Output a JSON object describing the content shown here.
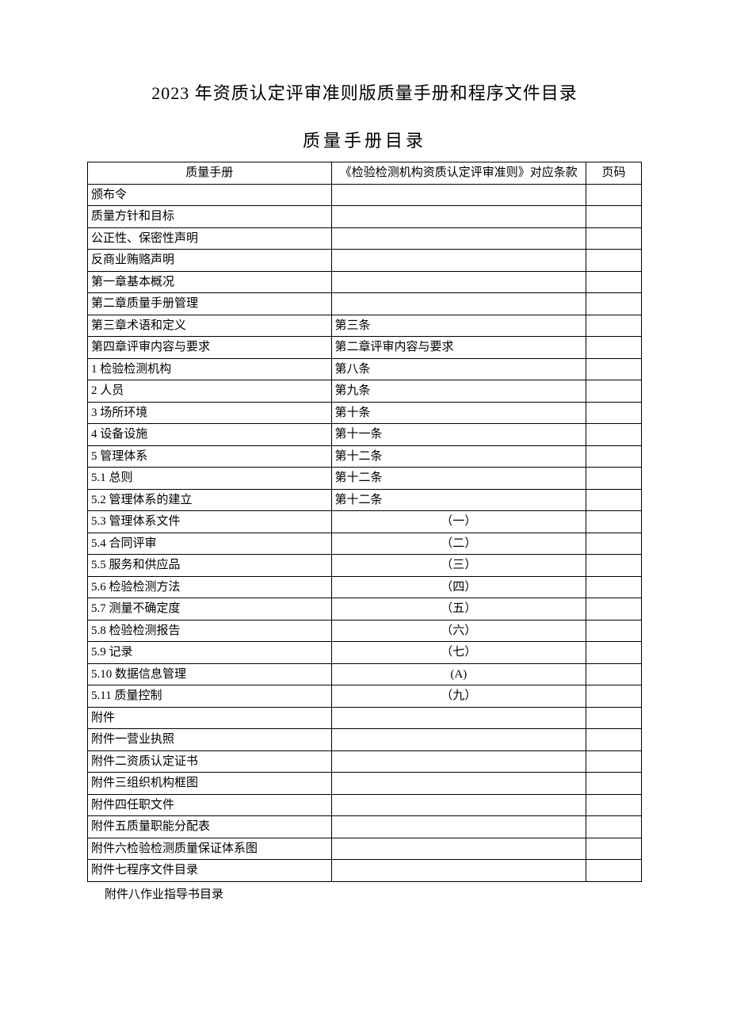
{
  "document": {
    "main_title": "2023 年资质认定评审准则版质量手册和程序文件目录",
    "sub_title": "质量手册目录",
    "footer_note": "附件八作业指导书目录"
  },
  "table": {
    "headers": {
      "col1": "质量手册",
      "col2": "《检验检测机构资质认定评审准则》对应条款",
      "col3": "页码"
    },
    "rows": [
      {
        "c1": "颁布令",
        "c2": "",
        "c3": "",
        "centered": false
      },
      {
        "c1": "质量方针和目标",
        "c2": "",
        "c3": "",
        "centered": false
      },
      {
        "c1": "公正性、保密性声明",
        "c2": "",
        "c3": "",
        "centered": false
      },
      {
        "c1": "反商业贿赂声明",
        "c2": "",
        "c3": "",
        "centered": false
      },
      {
        "c1": "第一章基本概况",
        "c2": "",
        "c3": "",
        "centered": false
      },
      {
        "c1": "第二章质量手册管理",
        "c2": "",
        "c3": "",
        "centered": false
      },
      {
        "c1": "第三章术语和定义",
        "c2": "第三条",
        "c3": "",
        "centered": false
      },
      {
        "c1": "第四章评审内容与要求",
        "c2": "第二章评审内容与要求",
        "c3": "",
        "centered": false
      },
      {
        "c1": "1 检验检测机构",
        "c2": "第八条",
        "c3": "",
        "centered": false
      },
      {
        "c1": "2 人员",
        "c2": "第九条",
        "c3": "",
        "centered": false
      },
      {
        "c1": "3 场所环境",
        "c2": "第十条",
        "c3": "",
        "centered": false
      },
      {
        "c1": "4 设备设施",
        "c2": "第十一条",
        "c3": "",
        "centered": false
      },
      {
        "c1": "5 管理体系",
        "c2": "第十二条",
        "c3": "",
        "centered": false
      },
      {
        "c1": "5.1 总则",
        "c2": "第十二条",
        "c3": "",
        "centered": false
      },
      {
        "c1": "5.2 管理体系的建立",
        "c2": "第十二条",
        "c3": "",
        "centered": false
      },
      {
        "c1": "5.3 管理体系文件",
        "c2": "（一）",
        "c3": "",
        "centered": true
      },
      {
        "c1": "5.4 合同评审",
        "c2": "（二）",
        "c3": "",
        "centered": true
      },
      {
        "c1": "5.5 服务和供应品",
        "c2": "（三）",
        "c3": "",
        "centered": true
      },
      {
        "c1": "5.6 检验检测方法",
        "c2": "（四）",
        "c3": "",
        "centered": true
      },
      {
        "c1": "5.7 测量不确定度",
        "c2": "（五）",
        "c3": "",
        "centered": true
      },
      {
        "c1": "5.8 检验检测报告",
        "c2": "（六）",
        "c3": "",
        "centered": true
      },
      {
        "c1": "5.9 记录",
        "c2": "（七）",
        "c3": "",
        "centered": true
      },
      {
        "c1": "5.10 数据信息管理",
        "c2": "(A)",
        "c3": "",
        "centered": true
      },
      {
        "c1": "5.11 质量控制",
        "c2": "（九）",
        "c3": "",
        "centered": true
      },
      {
        "c1": "附件",
        "c2": "",
        "c3": "",
        "centered": false
      },
      {
        "c1": "附件一营业执照",
        "c2": "",
        "c3": "",
        "centered": false
      },
      {
        "c1": "附件二资质认定证书",
        "c2": "",
        "c3": "",
        "centered": false
      },
      {
        "c1": "附件三组织机构框图",
        "c2": "",
        "c3": "",
        "centered": false
      },
      {
        "c1": "附件四任职文件",
        "c2": "",
        "c3": "",
        "centered": false
      },
      {
        "c1": "附件五质量职能分配表",
        "c2": "",
        "c3": "",
        "centered": false
      },
      {
        "c1": "附件六检验检测质量保证体系图",
        "c2": "",
        "c3": "",
        "centered": false
      },
      {
        "c1": "附件七程序文件目录",
        "c2": "",
        "c3": "",
        "centered": false
      }
    ]
  }
}
